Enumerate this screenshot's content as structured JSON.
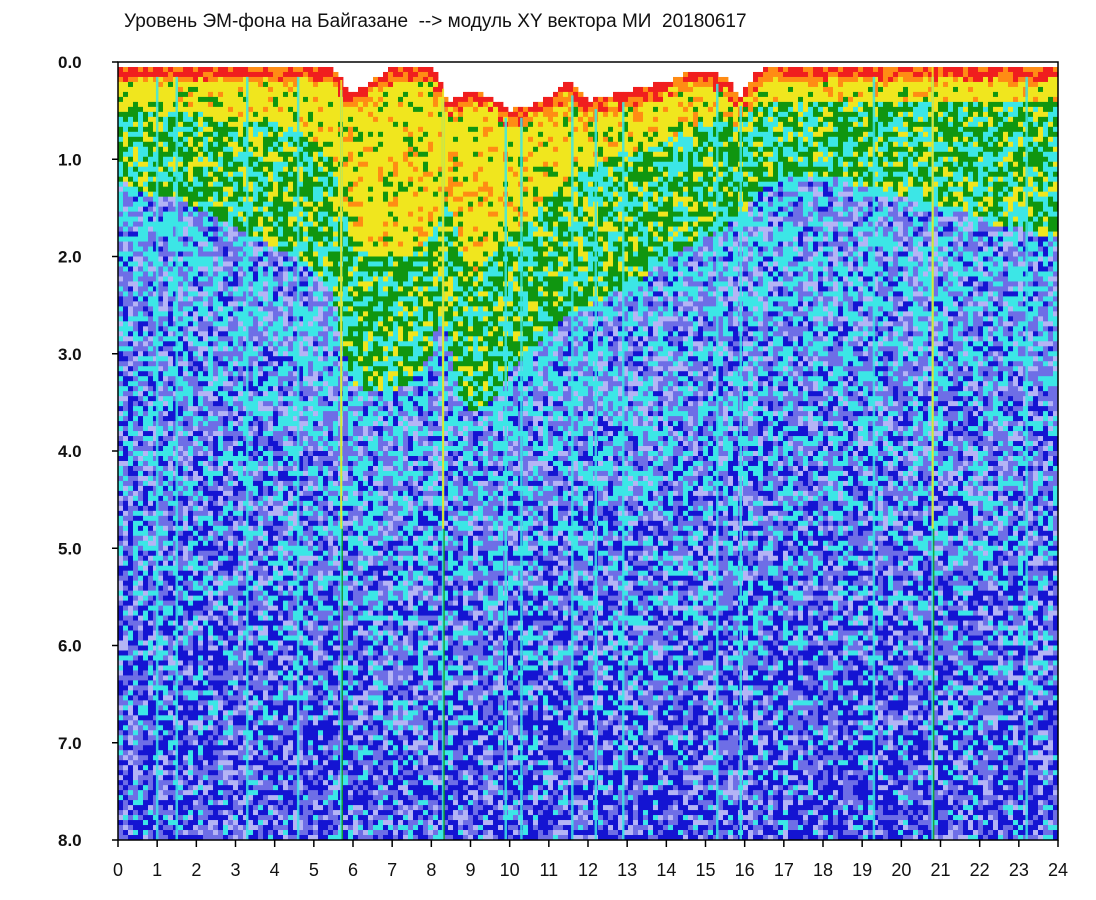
{
  "title": "Уровень ЭМ-фона на Байгазане  --> модуль XY вектора МИ  20180617",
  "chart_data": {
    "type": "heatmap",
    "title": "Уровень ЭМ-фона на Байгазане  --> модуль XY вектора МИ  20180617",
    "xlabel": "",
    "ylabel": "",
    "xlim": [
      0,
      24
    ],
    "ylim": [
      0.0,
      8.0
    ],
    "y_inverted": true,
    "x_ticks": [
      "0",
      "1",
      "2",
      "3",
      "4",
      "5",
      "6",
      "7",
      "8",
      "9",
      "10",
      "11",
      "12",
      "13",
      "14",
      "15",
      "16",
      "17",
      "18",
      "19",
      "20",
      "21",
      "22",
      "23",
      "24"
    ],
    "y_ticks": [
      "0.0",
      "1.0",
      "2.0",
      "3.0",
      "4.0",
      "5.0",
      "6.0",
      "7.0",
      "8.0"
    ],
    "grid": false,
    "colors": {
      "lowest": "#1414d2",
      "low": "#6e6ee6",
      "lavender": "#b4b4f5",
      "cyan": "#3ce6e6",
      "green": "#109610",
      "yellow": "#f0e61e",
      "orange": "#ff8c14",
      "red": "#f01e1e",
      "background": "#ffffff"
    },
    "color_scale_order": [
      "lowest",
      "low",
      "lavender",
      "cyan",
      "green",
      "yellow",
      "orange",
      "red"
    ],
    "profile_hours": [
      0,
      0.5,
      1,
      1.5,
      2,
      2.5,
      3,
      3.5,
      4,
      4.5,
      5,
      5.5,
      5.6,
      5.8,
      6,
      6.5,
      7,
      7.5,
      8,
      8.2,
      8.4,
      8.7,
      9,
      9.5,
      10,
      10.5,
      11,
      11.5,
      12,
      12.5,
      13,
      13.5,
      14,
      14.5,
      15,
      15.5,
      15.9,
      16.2,
      16.5,
      17,
      17.5,
      18,
      18.5,
      19,
      19.5,
      20,
      20.5,
      21,
      21.5,
      22,
      22.5,
      23,
      23.5,
      24
    ],
    "upper_edge": [
      0.05,
      0.05,
      0.05,
      0.05,
      0.05,
      0.05,
      0.05,
      0.05,
      0.05,
      0.05,
      0.05,
      0.08,
      0.12,
      0.25,
      0.3,
      0.2,
      0.05,
      0.05,
      0.05,
      0.15,
      0.4,
      0.35,
      0.3,
      0.35,
      0.5,
      0.45,
      0.35,
      0.2,
      0.4,
      0.35,
      0.3,
      0.25,
      0.2,
      0.12,
      0.08,
      0.15,
      0.35,
      0.15,
      0.05,
      0.05,
      0.05,
      0.05,
      0.05,
      0.05,
      0.05,
      0.05,
      0.05,
      0.05,
      0.05,
      0.05,
      0.05,
      0.05,
      0.05,
      0.05
    ],
    "yellow_depth": [
      0.5,
      0.5,
      0.5,
      0.5,
      0.5,
      0.6,
      0.6,
      0.6,
      0.6,
      0.7,
      0.8,
      1.0,
      1.3,
      1.6,
      1.9,
      2.0,
      2.0,
      2.0,
      1.8,
      1.6,
      1.4,
      1.8,
      2.2,
      2.0,
      1.8,
      1.6,
      1.4,
      1.2,
      1.1,
      1.0,
      0.9,
      0.9,
      0.8,
      0.7,
      0.6,
      0.6,
      0.7,
      0.5,
      0.4,
      0.4,
      0.4,
      0.4,
      0.4,
      0.4,
      0.4,
      0.4,
      0.4,
      0.4,
      0.4,
      0.4,
      0.4,
      0.4,
      0.4,
      0.4
    ],
    "green_depth": [
      1.2,
      1.3,
      1.4,
      1.4,
      1.5,
      1.6,
      1.7,
      1.8,
      1.9,
      2.0,
      2.2,
      2.4,
      2.6,
      3.0,
      3.3,
      3.4,
      3.4,
      3.3,
      3.0,
      2.6,
      2.8,
      3.4,
      3.6,
      3.5,
      3.2,
      3.0,
      2.8,
      2.6,
      2.5,
      2.4,
      2.3,
      2.2,
      2.0,
      1.9,
      1.8,
      1.7,
      1.6,
      1.4,
      1.3,
      1.2,
      1.2,
      1.2,
      1.2,
      1.3,
      1.3,
      1.4,
      1.4,
      1.5,
      1.5,
      1.6,
      1.7,
      1.7,
      1.8,
      1.8
    ],
    "streak_hours": [
      1.0,
      1.5,
      3.3,
      4.6,
      5.7,
      8.3,
      9.9,
      10.3,
      11.6,
      12.2,
      12.9,
      15.3,
      15.9,
      19.3,
      20.8,
      23.2
    ],
    "bright_streak_hours": [
      5.7,
      8.3,
      20.8
    ]
  }
}
